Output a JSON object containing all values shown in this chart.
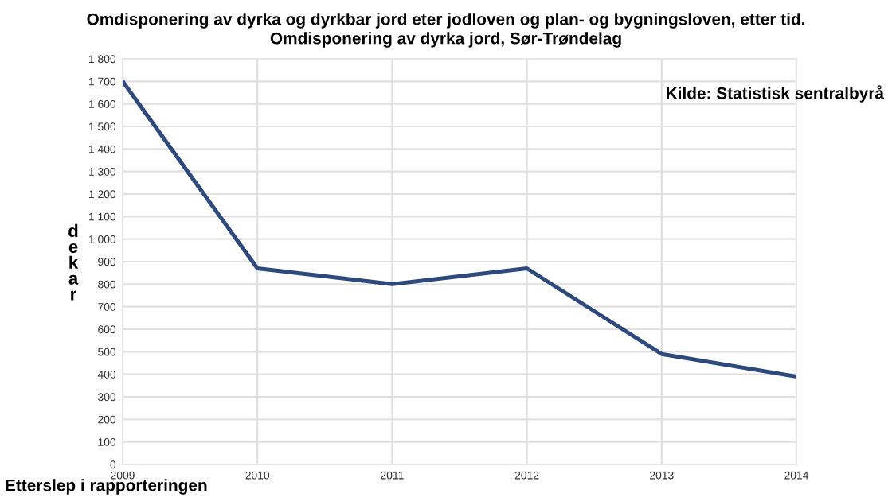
{
  "chart_data": {
    "type": "line",
    "title": "Omdisponering av dyrka og dyrkbar jord eter jodloven og plan- og bygningsloven, etter tid.",
    "subtitle": "Omdisponering av dyrka jord, Sør-Trøndelag",
    "xlabel": "Etterslep i rapporteringen",
    "ylabel": "dekar",
    "annotations": [
      "Kilde: Statistisk sentralbyrå"
    ],
    "x": [
      2009,
      2010,
      2011,
      2012,
      2013,
      2014
    ],
    "series": [
      {
        "color": "#2e4a7d",
        "values": [
          1700,
          870,
          800,
          870,
          490,
          390
        ]
      }
    ],
    "xlim": [
      2009,
      2014
    ],
    "xticks": [
      2009,
      2010,
      2011,
      2012,
      2013,
      2014
    ],
    "ylim": [
      0,
      1800
    ],
    "yticks": [
      0,
      100,
      200,
      300,
      400,
      500,
      600,
      700,
      800,
      900,
      {
        "value": 1000,
        "label": "1 000"
      },
      {
        "value": 1100,
        "label": "1 100"
      },
      {
        "value": 1200,
        "label": "1 200"
      },
      {
        "value": 1300,
        "label": "1 300"
      },
      {
        "value": 1400,
        "label": "1 400"
      },
      {
        "value": 1500,
        "label": "1 500"
      },
      {
        "value": 1600,
        "label": "1 600"
      },
      {
        "value": 1700,
        "label": "1 700"
      },
      {
        "value": 1800,
        "label": "1 800"
      }
    ],
    "grid": true,
    "marker": "none",
    "line_style": "solid"
  }
}
